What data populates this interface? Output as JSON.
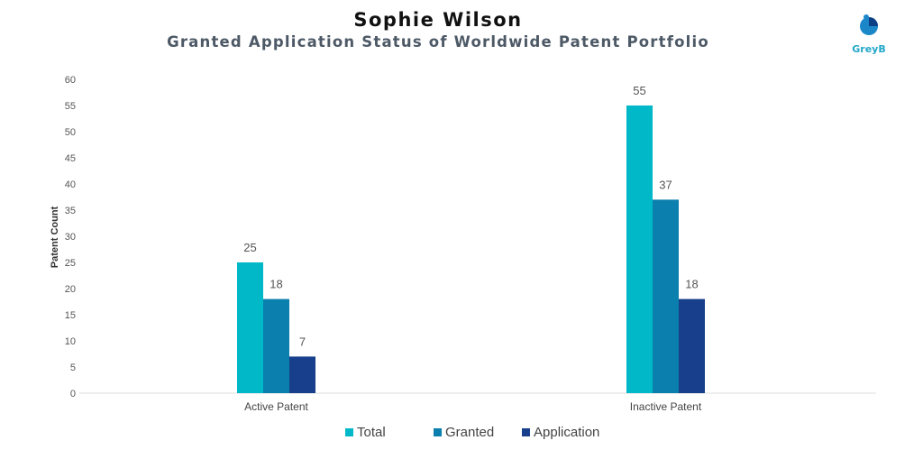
{
  "header": {
    "title": "Sophie Wilson",
    "subtitle": "Granted Application Status of Worldwide Patent Portfolio"
  },
  "logo": {
    "text": "GreyB"
  },
  "colors": {
    "total": "#00b8c8",
    "granted": "#0b7fad",
    "application": "#173f8c"
  },
  "chart_data": {
    "type": "bar",
    "title": "Sophie Wilson",
    "subtitle": "Granted Application Status of Worldwide Patent Portfolio",
    "ylabel": "Patent Count",
    "xlabel": "",
    "categories": [
      "Active Patent",
      "Inactive Patent"
    ],
    "series": [
      {
        "name": "Total",
        "values": [
          25,
          55
        ]
      },
      {
        "name": "Granted",
        "values": [
          18,
          37
        ]
      },
      {
        "name": "Application",
        "values": [
          7,
          18
        ]
      }
    ],
    "ylim": [
      0,
      60
    ],
    "yticks": [
      0,
      5,
      10,
      15,
      20,
      25,
      30,
      35,
      40,
      45,
      50,
      55,
      60
    ],
    "grid": false,
    "legend": "bottom"
  }
}
